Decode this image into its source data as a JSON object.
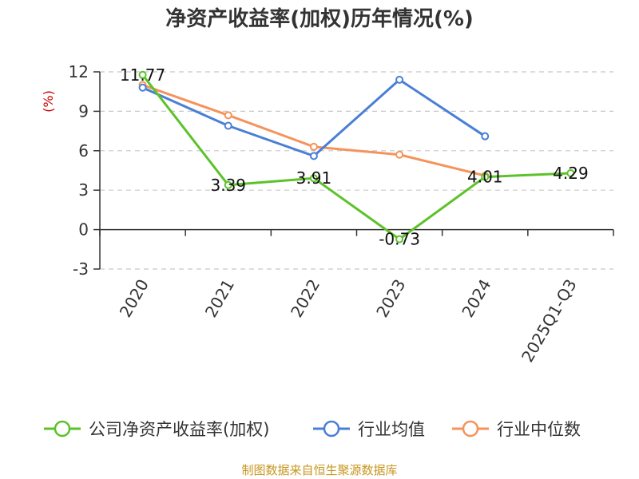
{
  "chart_data": {
    "type": "line",
    "title": "净资产收益率(加权)历年情况(%)",
    "ylabel": "(%)",
    "categories": [
      "2020",
      "2021",
      "2022",
      "2023",
      "2024",
      "2025Q1-Q3"
    ],
    "ylim": [
      -3,
      12
    ],
    "yticks": [
      12,
      9,
      6,
      3,
      0,
      -3
    ],
    "grid": true,
    "legend_position": "bottom",
    "series": [
      {
        "name": "公司净资产收益率(加权)",
        "color": "#5cc22a",
        "values": [
          11.77,
          3.39,
          3.91,
          -0.73,
          4.01,
          4.29
        ],
        "labels": [
          "11.77",
          "3.39",
          "3.91",
          "-0.73",
          "4.01",
          "4.29"
        ]
      },
      {
        "name": "行业均值",
        "color": "#4a7fd6",
        "values": [
          10.8,
          7.9,
          5.6,
          11.4,
          7.1,
          null
        ]
      },
      {
        "name": "行业中位数",
        "color": "#f5935b",
        "values": [
          11.0,
          8.7,
          6.3,
          5.7,
          4.1,
          null
        ]
      }
    ]
  },
  "footer": "制图数据来自恒生聚源数据库"
}
